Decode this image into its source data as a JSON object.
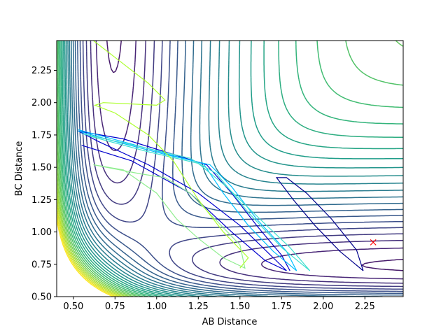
{
  "chart_data": {
    "type": "contour",
    "title": "",
    "xlabel": "AB Distance",
    "ylabel": "BC Distance",
    "xlim": [
      0.4,
      2.48
    ],
    "ylim": [
      0.5,
      2.48
    ],
    "xticks": [
      "0.50",
      "0.75",
      "1.00",
      "1.25",
      "1.50",
      "1.75",
      "2.00",
      "2.25"
    ],
    "yticks": [
      "0.50",
      "0.75",
      "1.00",
      "1.25",
      "1.50",
      "1.75",
      "2.00",
      "2.25"
    ],
    "colormap": "viridis",
    "contour_levels": 30,
    "grid": false,
    "legend": "none",
    "marker": {
      "symbol": "x",
      "color": "#ff0000",
      "x": 2.3,
      "y": 0.92
    },
    "trajectories": [
      {
        "color": "#00008b",
        "points": [
          [
            2.24,
            0.7
          ],
          [
            2.1,
            0.85
          ],
          [
            1.95,
            1.05
          ],
          [
            1.82,
            1.25
          ],
          [
            1.72,
            1.42
          ],
          [
            1.78,
            1.42
          ],
          [
            1.9,
            1.3
          ],
          [
            2.05,
            1.1
          ],
          [
            2.2,
            0.86
          ],
          [
            2.24,
            0.7
          ]
        ]
      },
      {
        "color": "#0000cd",
        "points": [
          [
            0.55,
            1.67
          ],
          [
            0.85,
            1.55
          ],
          [
            1.2,
            1.3
          ],
          [
            1.45,
            1.0
          ],
          [
            1.65,
            0.78
          ],
          [
            1.78,
            0.7
          ],
          [
            1.7,
            0.8
          ],
          [
            1.5,
            1.05
          ],
          [
            1.25,
            1.3
          ],
          [
            0.95,
            1.52
          ],
          [
            0.65,
            1.7
          ],
          [
            0.53,
            1.78
          ],
          [
            0.8,
            1.72
          ],
          [
            1.1,
            1.6
          ],
          [
            1.3,
            1.52
          ],
          [
            1.45,
            1.3
          ],
          [
            1.6,
            1.05
          ],
          [
            1.75,
            0.82
          ],
          [
            1.8,
            0.7
          ]
        ]
      },
      {
        "color": "#00bfff",
        "points": [
          [
            0.53,
            1.79
          ],
          [
            0.85,
            1.68
          ],
          [
            1.1,
            1.59
          ],
          [
            1.28,
            1.53
          ],
          [
            1.4,
            1.3
          ],
          [
            1.55,
            1.05
          ],
          [
            1.7,
            0.85
          ],
          [
            1.84,
            0.7
          ],
          [
            1.78,
            0.85
          ],
          [
            1.6,
            1.1
          ],
          [
            1.45,
            1.35
          ],
          [
            1.32,
            1.52
          ],
          [
            1.05,
            1.6
          ],
          [
            0.75,
            1.7
          ],
          [
            0.53,
            1.78
          ]
        ]
      },
      {
        "color": "#40e0d0",
        "points": [
          [
            0.55,
            1.76
          ],
          [
            0.9,
            1.66
          ],
          [
            1.2,
            1.57
          ],
          [
            1.36,
            1.45
          ],
          [
            1.55,
            1.15
          ],
          [
            1.75,
            0.88
          ],
          [
            1.92,
            0.7
          ],
          [
            1.8,
            0.88
          ],
          [
            1.62,
            1.1
          ],
          [
            1.42,
            1.35
          ],
          [
            1.25,
            1.53
          ],
          [
            0.95,
            1.62
          ],
          [
            0.6,
            1.74
          ]
        ]
      },
      {
        "color": "#90ee90",
        "points": [
          [
            0.62,
            1.52
          ],
          [
            0.9,
            1.45
          ],
          [
            1.05,
            1.42
          ],
          [
            1.2,
            1.3
          ],
          [
            1.35,
            1.1
          ],
          [
            1.5,
            0.9
          ],
          [
            1.53,
            0.72
          ],
          [
            1.4,
            0.8
          ],
          [
            1.25,
            0.95
          ],
          [
            1.12,
            1.1
          ],
          [
            1.0,
            1.3
          ],
          [
            0.8,
            1.48
          ],
          [
            0.62,
            1.52
          ]
        ]
      },
      {
        "color": "#adff2f",
        "points": [
          [
            0.62,
            2.48
          ],
          [
            0.8,
            2.3
          ],
          [
            0.95,
            2.15
          ],
          [
            1.05,
            2.02
          ],
          [
            1.0,
            1.98
          ],
          [
            0.85,
            1.99
          ],
          [
            0.68,
            2.0
          ],
          [
            0.63,
            1.98
          ],
          [
            0.75,
            1.92
          ],
          [
            0.95,
            1.75
          ],
          [
            1.1,
            1.55
          ],
          [
            1.25,
            1.25
          ],
          [
            1.4,
            1.0
          ],
          [
            1.55,
            0.8
          ],
          [
            1.5,
            0.72
          ]
        ]
      }
    ]
  }
}
